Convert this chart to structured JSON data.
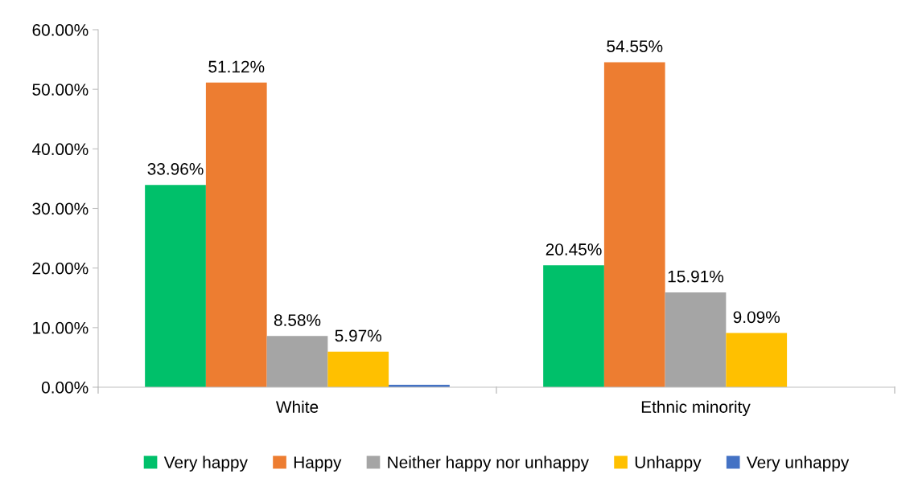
{
  "chart_data": {
    "type": "bar",
    "categories": [
      "White",
      "Ethnic minority"
    ],
    "series": [
      {
        "name": "Very happy",
        "color": "#00c06a",
        "values": [
          33.96,
          20.45
        ],
        "value_labels": [
          "33.96%",
          "20.45%"
        ]
      },
      {
        "name": "Happy",
        "color": "#ed7d31",
        "values": [
          51.12,
          54.55
        ],
        "value_labels": [
          "51.12%",
          "54.55%"
        ]
      },
      {
        "name": "Neither happy nor unhappy",
        "color": "#a5a5a5",
        "values": [
          8.58,
          15.91
        ],
        "value_labels": [
          "8.58%",
          "15.91%"
        ]
      },
      {
        "name": "Unhappy",
        "color": "#ffc000",
        "values": [
          5.97,
          9.09
        ],
        "value_labels": [
          "5.97%",
          "9.09%"
        ]
      },
      {
        "name": "Very unhappy",
        "color": "#4472c4",
        "values": [
          0.4,
          0
        ],
        "value_labels": [
          null,
          null
        ]
      }
    ],
    "ylim": [
      0,
      60
    ],
    "yticks": [
      {
        "value": 0,
        "label": "0.00%"
      },
      {
        "value": 10,
        "label": "10.00%"
      },
      {
        "value": 20,
        "label": "20.00%"
      },
      {
        "value": 30,
        "label": "30.00%"
      },
      {
        "value": 40,
        "label": "40.00%"
      },
      {
        "value": 50,
        "label": "50.00%"
      },
      {
        "value": 60,
        "label": "60.00%"
      }
    ],
    "grid": false,
    "legend": "bottom"
  }
}
